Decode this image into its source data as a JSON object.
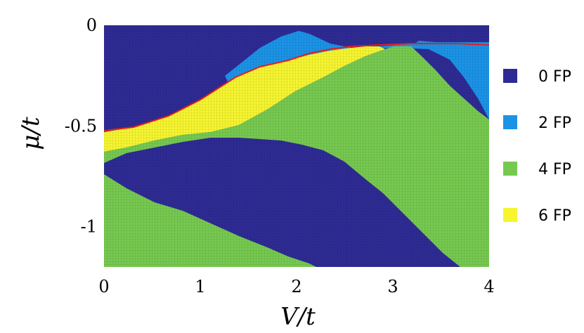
{
  "chart_data": {
    "type": "heatmap",
    "title": "",
    "xlabel": "V/t",
    "ylabel": "μ/t",
    "xlim": [
      0,
      4
    ],
    "ylim": [
      -1.2,
      0
    ],
    "x_ticks": [
      {
        "value": 0,
        "label": "0"
      },
      {
        "value": 1,
        "label": "1"
      },
      {
        "value": 2,
        "label": "2"
      },
      {
        "value": 3,
        "label": "3"
      },
      {
        "value": 4,
        "label": "4"
      }
    ],
    "y_ticks": [
      {
        "value": 0,
        "label": "0"
      },
      {
        "value": -0.5,
        "label": "-0.5"
      },
      {
        "value": -1,
        "label": "-1"
      }
    ],
    "grid": "fine cell mesh",
    "legend_position": "right",
    "legend": [
      {
        "label": "0 FP",
        "color": "#2e2b94"
      },
      {
        "label": "2 FP",
        "color": "#1b93e6"
      },
      {
        "label": "4 FP",
        "color": "#76c950"
      },
      {
        "label": "6 FP",
        "color": "#f6f530"
      }
    ],
    "region_boundaries": {
      "description": "Approximate phase boundaries in (V/t, μ/t) data units; regions read top to bottom at each V/t",
      "top_dark_lower_edge": [
        [
          0,
          -0.55
        ],
        [
          0.3,
          -0.52
        ],
        [
          1.0,
          -0.41
        ],
        [
          1.4,
          -0.24
        ],
        [
          1.7,
          -0.16
        ],
        [
          2.0,
          -0.09
        ],
        [
          2.5,
          -0.09
        ],
        [
          3.0,
          -0.08
        ],
        [
          3.5,
          -0.08
        ],
        [
          4.0,
          -0.09
        ]
      ],
      "blue_upper_edge": [
        [
          1.3,
          -0.28
        ],
        [
          1.6,
          -0.13
        ],
        [
          1.9,
          -0.05
        ],
        [
          2.1,
          -0.03
        ],
        [
          2.3,
          -0.05
        ],
        [
          2.5,
          -0.09
        ],
        [
          3.0,
          -0.08
        ],
        [
          3.3,
          -0.07
        ],
        [
          3.5,
          -0.07
        ],
        [
          3.8,
          -0.07
        ],
        [
          4.0,
          -0.07
        ]
      ],
      "blue_right_region_lower_edge": [
        [
          3.3,
          -0.07
        ],
        [
          3.6,
          -0.15
        ],
        [
          3.9,
          -0.37
        ],
        [
          4.0,
          -0.45
        ]
      ],
      "yellow_upper_edge": [
        [
          0,
          -0.55
        ],
        [
          0.3,
          -0.52
        ],
        [
          1.0,
          -0.41
        ],
        [
          1.4,
          -0.26
        ],
        [
          1.7,
          -0.19
        ],
        [
          2.0,
          -0.16
        ],
        [
          2.4,
          -0.11
        ],
        [
          2.6,
          -0.09
        ]
      ],
      "green_upper_edge_center": [
        [
          1.5,
          -0.5
        ],
        [
          2.0,
          -0.38
        ],
        [
          2.5,
          -0.22
        ],
        [
          2.9,
          -0.1
        ],
        [
          3.2,
          -0.09
        ],
        [
          3.5,
          -0.21
        ],
        [
          3.8,
          -0.37
        ],
        [
          4.0,
          -0.45
        ]
      ],
      "lower_dark_upper_edge": [
        [
          0.05,
          -0.67
        ],
        [
          0.4,
          -0.64
        ],
        [
          0.8,
          -0.6
        ],
        [
          1.3,
          -0.57
        ],
        [
          1.7,
          -0.58
        ],
        [
          2.0,
          -0.6
        ],
        [
          2.3,
          -0.63
        ],
        [
          2.6,
          -0.71
        ],
        [
          3.0,
          -0.83
        ],
        [
          3.3,
          -0.98
        ],
        [
          3.6,
          -1.12
        ],
        [
          3.7,
          -1.2
        ]
      ],
      "lower_dark_lower_edge": [
        [
          0,
          -0.7
        ],
        [
          0.3,
          -0.8
        ],
        [
          0.7,
          -0.89
        ],
        [
          1.1,
          -0.99
        ],
        [
          1.5,
          -1.08
        ],
        [
          2.0,
          -1.17
        ],
        [
          2.2,
          -1.2
        ]
      ]
    }
  }
}
